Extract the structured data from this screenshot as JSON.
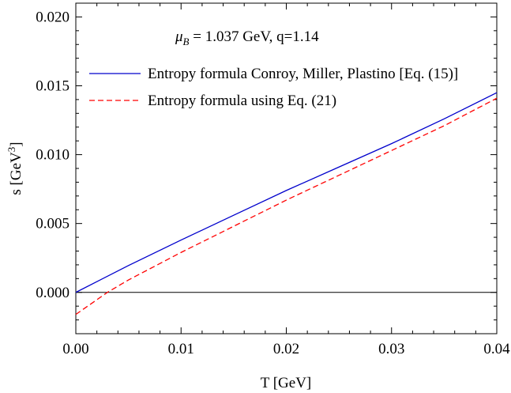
{
  "chart_data": {
    "type": "line",
    "annotation": {
      "mu_symbol": "μ",
      "mu_subscript": "B",
      "text": " = 1.037 GeV,  q=1.14"
    },
    "xlabel": "T [GeV]",
    "ylabel": {
      "prefix": "s [GeV",
      "superscript": "3",
      "suffix": "]"
    },
    "xlim": [
      0.0,
      0.04
    ],
    "ylim": [
      -0.003,
      0.021
    ],
    "xticks": [
      0.0,
      0.01,
      0.02,
      0.03,
      0.04
    ],
    "xtick_labels": [
      "0.00",
      "0.01",
      "0.02",
      "0.03",
      "0.04"
    ],
    "yticks": [
      0.0,
      0.005,
      0.01,
      0.015,
      0.02
    ],
    "ytick_labels": [
      "0.000",
      "0.005",
      "0.010",
      "0.015",
      "0.020"
    ],
    "reference_line_y": 0.0,
    "legend_position": "top-right",
    "grid": false,
    "series": [
      {
        "name": "Entropy formula Conroy, Miller, Plastino [Eq. (15)]",
        "color": "#0000cc",
        "style": "solid",
        "x": [
          0.0,
          0.005,
          0.01,
          0.015,
          0.02,
          0.025,
          0.03,
          0.035,
          0.04
        ],
        "y": [
          0.0,
          0.00195,
          0.0038,
          0.0056,
          0.0074,
          0.0091,
          0.0108,
          0.0126,
          0.0145
        ]
      },
      {
        "name": "Entropy formula using Eq. (21)",
        "color": "#ff0000",
        "style": "dashed",
        "x": [
          0.0,
          0.003,
          0.005,
          0.01,
          0.015,
          0.02,
          0.025,
          0.03,
          0.035,
          0.04
        ],
        "y": [
          -0.0016,
          0.0,
          0.0009,
          0.0029,
          0.0048,
          0.0067,
          0.0085,
          0.0103,
          0.0121,
          0.0141
        ]
      }
    ]
  }
}
